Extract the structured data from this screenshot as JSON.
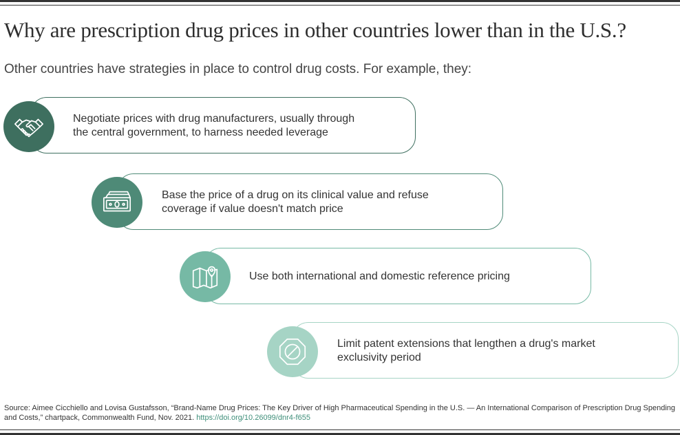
{
  "title": "Why are prescription drug prices in other countries lower than in the U.S.?",
  "subtitle": "Other countries have strategies in place to control drug costs. For example, they:",
  "strategies": [
    {
      "icon": "handshake-icon",
      "color": "#3e6f5f",
      "line1": "Negotiate prices with drug manufacturers, usually through",
      "line2": "the central government, to harness needed leverage"
    },
    {
      "icon": "money-icon",
      "color": "#4e8a77",
      "line1": "Base the price of a drug on its clinical value and refuse",
      "line2": "coverage if value doesn't match price"
    },
    {
      "icon": "map-pin-icon",
      "color": "#76b9a5",
      "line1": "Use both international and domestic reference pricing",
      "line2": ""
    },
    {
      "icon": "prohibited-icon",
      "color": "#a6d4c5",
      "line1": "Limit patent extensions that lengthen a drug's market",
      "line2": "exclusivity period"
    }
  ],
  "source": {
    "text": "Source: Aimee Cicchiello and Lovisa Gustafsson, “Brand-Name Drug Prices: The Key Driver of High Pharmaceutical Spending in the U.S. — An International Comparison of Prescription Drug Spending and Costs,” chartpack, Commonwealth Fund, Nov. 2021. ",
    "link": "https://doi.org/10.26099/dnr4-f655"
  }
}
